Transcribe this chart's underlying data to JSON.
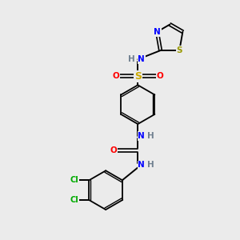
{
  "bg_color": "#ebebeb",
  "bond_color": "#000000",
  "atom_colors": {
    "N": "#0000ff",
    "O": "#ff0000",
    "S_sulfonamide": "#ccaa00",
    "S_thiazole": "#999900",
    "Cl": "#00aa00",
    "H": "#708090",
    "C": "#000000"
  },
  "figsize": [
    3.0,
    3.0
  ],
  "dpi": 100
}
